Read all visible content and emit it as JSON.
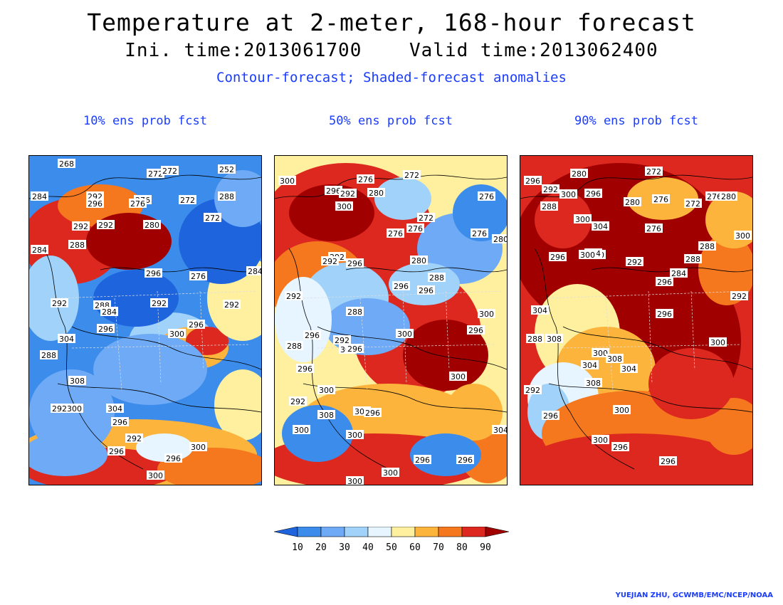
{
  "title": "Temperature at 2-meter, 168-hour forecast",
  "subtitle": {
    "init": "Ini. time:2013061700",
    "valid": "Valid time:2013062400"
  },
  "description": "Contour-forecast; Shaded-forecast anomalies",
  "colors": {
    "title": "#000000",
    "description": "#1a3cff",
    "scale": [
      "#1e64dc",
      "#3c8ceb",
      "#6eaaf5",
      "#a0d2fa",
      "#e6f5ff",
      "#fff0a0",
      "#fcb43c",
      "#f5781e",
      "#dc281e",
      "#a00000"
    ]
  },
  "colorbar": {
    "ticks": [
      "10",
      "20",
      "30",
      "40",
      "50",
      "60",
      "70",
      "80",
      "90"
    ]
  },
  "panels": [
    {
      "label": "10% ens prob fcst",
      "contour_labels": [
        "268",
        "272",
        "252",
        "272",
        "276",
        "284",
        "292",
        "296",
        "276",
        "272",
        "272",
        "288",
        "292",
        "280",
        "284",
        "292",
        "288",
        "296",
        "276",
        "284",
        "292",
        "288",
        "284",
        "292",
        "292",
        "296",
        "300",
        "296",
        "304",
        "288",
        "308",
        "292300",
        "304",
        "296",
        "292",
        "296",
        "296",
        "300",
        "300"
      ]
    },
    {
      "label": "50% ens prob fcst",
      "contour_labels": [
        "292",
        "296",
        "292",
        "276",
        "272",
        "280",
        "276",
        "300",
        "272",
        "276",
        "280",
        "292",
        "276",
        "276",
        "292",
        "296",
        "280",
        "288",
        "296",
        "296",
        "292",
        "288",
        "300",
        "296",
        "292",
        "296",
        "300",
        "304",
        "296",
        "288",
        "296",
        "300",
        "304",
        "300",
        "292",
        "308",
        "296",
        "300",
        "304",
        "300",
        "296",
        "296",
        "300",
        "300",
        "300"
      ]
    },
    {
      "label": "90% ens prob fcst",
      "contour_labels": [
        "296",
        "280",
        "272",
        "292",
        "300",
        "296",
        "288",
        "280",
        "276",
        "272",
        "300",
        "304",
        "276",
        "276",
        "280",
        "296",
        "300",
        "304",
        "292",
        "288",
        "296",
        "284",
        "300",
        "300",
        "288",
        "292",
        "304",
        "296",
        "288",
        "308",
        "300",
        "300",
        "308",
        "304",
        "304",
        "292",
        "308",
        "300",
        "296",
        "300",
        "296",
        "296"
      ]
    }
  ],
  "credit": "YUEJIAN ZHU, GCWMB/EMC/NCEP/NOAA"
}
